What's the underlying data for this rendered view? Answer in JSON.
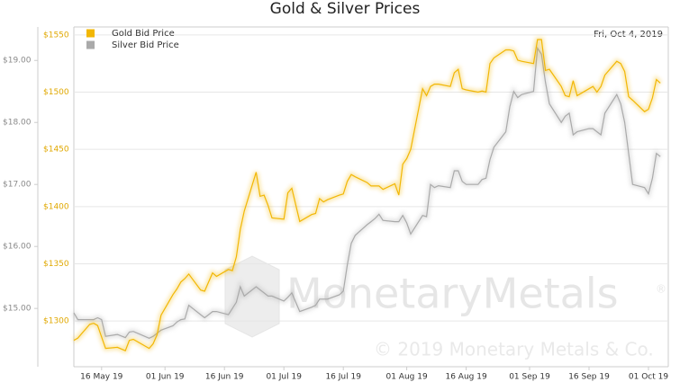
{
  "chart_data": {
    "type": "line",
    "title": "Gold & Silver Prices",
    "date_label": "Fri, Oct 4, 2019",
    "watermark": "MonetaryMetals",
    "watermark_mark": "®",
    "copyright": "© 2019 Monetary Metals & Co.",
    "x": [
      "2019-05-09",
      "2019-05-10",
      "2019-05-13",
      "2019-05-14",
      "2019-05-15",
      "2019-05-16",
      "2019-05-17",
      "2019-05-20",
      "2019-05-22",
      "2019-05-23",
      "2019-05-24",
      "2019-05-28",
      "2019-05-29",
      "2019-05-30",
      "2019-05-31",
      "2019-06-03",
      "2019-06-04",
      "2019-06-05",
      "2019-06-06",
      "2019-06-07",
      "2019-06-10",
      "2019-06-11",
      "2019-06-12",
      "2019-06-13",
      "2019-06-14",
      "2019-06-17",
      "2019-06-18",
      "2019-06-19",
      "2019-06-20",
      "2019-06-21",
      "2019-06-24",
      "2019-06-25",
      "2019-06-26",
      "2019-06-27",
      "2019-06-28",
      "2019-07-01",
      "2019-07-02",
      "2019-07-03",
      "2019-07-05",
      "2019-07-08",
      "2019-07-09",
      "2019-07-10",
      "2019-07-11",
      "2019-07-12",
      "2019-07-15",
      "2019-07-16",
      "2019-07-17",
      "2019-07-18",
      "2019-07-19",
      "2019-07-22",
      "2019-07-23",
      "2019-07-24",
      "2019-07-25",
      "2019-07-26",
      "2019-07-29",
      "2019-07-30",
      "2019-07-31",
      "2019-08-01",
      "2019-08-02",
      "2019-08-05",
      "2019-08-06",
      "2019-08-07",
      "2019-08-08",
      "2019-08-09",
      "2019-08-12",
      "2019-08-13",
      "2019-08-14",
      "2019-08-15",
      "2019-08-16",
      "2019-08-19",
      "2019-08-20",
      "2019-08-21",
      "2019-08-22",
      "2019-08-23",
      "2019-08-26",
      "2019-08-27",
      "2019-08-28",
      "2019-08-29",
      "2019-08-30",
      "2019-09-02",
      "2019-09-03",
      "2019-09-04",
      "2019-09-05",
      "2019-09-06",
      "2019-09-09",
      "2019-09-10",
      "2019-09-11",
      "2019-09-12",
      "2019-09-13",
      "2019-09-16",
      "2019-09-17",
      "2019-09-18",
      "2019-09-19",
      "2019-09-20",
      "2019-09-23",
      "2019-09-24",
      "2019-09-25",
      "2019-09-26",
      "2019-09-27",
      "2019-09-30",
      "2019-10-01",
      "2019-10-02",
      "2019-10-03",
      "2019-10-04"
    ],
    "xlim": [
      "2019-05-09",
      "2019-10-06"
    ],
    "xticks": [
      {
        "value": "2019-05-16",
        "label": "16 May 19"
      },
      {
        "value": "2019-06-01",
        "label": "01 Jun 19"
      },
      {
        "value": "2019-06-16",
        "label": "16 Jun 19"
      },
      {
        "value": "2019-07-01",
        "label": "01 Jul 19"
      },
      {
        "value": "2019-07-16",
        "label": "16 Jul 19"
      },
      {
        "value": "2019-08-01",
        "label": "01 Aug 19"
      },
      {
        "value": "2019-08-16",
        "label": "16 Aug 19"
      },
      {
        "value": "2019-09-01",
        "label": "01 Sep 19"
      },
      {
        "value": "2019-09-16",
        "label": "16 Sep 19"
      },
      {
        "value": "2019-10-01",
        "label": "01 Oct 19"
      }
    ],
    "ylim": [
      1260,
      1557
    ],
    "yticks": [
      {
        "value": 1300,
        "label": "$1300"
      },
      {
        "value": 1350,
        "label": "$1350"
      },
      {
        "value": 1400,
        "label": "$1400"
      },
      {
        "value": 1450,
        "label": "$1450"
      },
      {
        "value": 1500,
        "label": "$1500"
      },
      {
        "value": 1550,
        "label": "$1550"
      }
    ],
    "y2lim": [
      14.06,
      19.54
    ],
    "y2ticks": [
      {
        "value": 15,
        "label": "$15.00"
      },
      {
        "value": 16,
        "label": "$16.00"
      },
      {
        "value": 17,
        "label": "$17.00"
      },
      {
        "value": 18,
        "label": "$18.00"
      },
      {
        "value": 19,
        "label": "$19.00"
      }
    ],
    "grid": true,
    "legend": "upper left",
    "series": [
      {
        "name": "Gold Bid Price",
        "color": "#f2b705",
        "values": [
          1283,
          1285,
          1297,
          1298,
          1296,
          1286,
          1276,
          1277,
          1274,
          1283,
          1284,
          1276,
          1280,
          1288,
          1305,
          1323,
          1328,
          1334,
          1337,
          1341,
          1327,
          1326,
          1334,
          1342,
          1339,
          1345,
          1344,
          1356,
          1380,
          1396,
          1430,
          1409,
          1410,
          1401,
          1390,
          1389,
          1412,
          1416,
          1387,
          1393,
          1394,
          1407,
          1404,
          1406,
          1410,
          1411,
          1422,
          1428,
          1426,
          1421,
          1418,
          1418,
          1418,
          1415,
          1420,
          1410,
          1437,
          1442,
          1450,
          1503,
          1497,
          1505,
          1507,
          1507,
          1505,
          1517,
          1520,
          1503,
          1502,
          1500,
          1501,
          1500,
          1525,
          1530,
          1537,
          1537,
          1536,
          1528,
          1527,
          1525,
          1546,
          1546,
          1519,
          1520,
          1505,
          1497,
          1496,
          1510,
          1497,
          1503,
          1505,
          1500,
          1505,
          1515,
          1527,
          1525,
          1518,
          1496,
          1493,
          1483,
          1485,
          1495,
          1511,
          1508
        ]
      },
      {
        "name": "Silver Bid Price",
        "color": "#aaaaaa",
        "axis": "y2",
        "values": [
          14.93,
          14.82,
          14.82,
          14.82,
          14.85,
          14.82,
          14.55,
          14.58,
          14.53,
          14.62,
          14.63,
          14.52,
          14.55,
          14.6,
          14.65,
          14.72,
          14.78,
          14.82,
          14.83,
          15.05,
          14.9,
          14.85,
          14.9,
          14.95,
          14.95,
          14.9,
          15.0,
          15.1,
          15.35,
          15.2,
          15.35,
          15.3,
          15.25,
          15.2,
          15.2,
          15.12,
          15.18,
          15.25,
          14.95,
          15.02,
          15.05,
          15.15,
          15.15,
          15.15,
          15.22,
          15.28,
          15.7,
          16.05,
          16.18,
          16.35,
          16.4,
          16.45,
          16.52,
          16.42,
          16.4,
          16.4,
          16.5,
          16.38,
          16.2,
          16.5,
          16.48,
          17.0,
          16.95,
          16.98,
          16.95,
          17.22,
          17.22,
          17.05,
          17.0,
          17.0,
          17.08,
          17.1,
          17.4,
          17.6,
          17.85,
          18.25,
          18.5,
          18.4,
          18.45,
          18.5,
          19.2,
          19.1,
          18.65,
          18.3,
          18.0,
          18.1,
          18.15,
          17.8,
          17.85,
          17.9,
          17.9,
          17.85,
          17.8,
          18.15,
          18.45,
          18.3,
          18.0,
          17.5,
          17.0,
          16.95,
          16.85,
          17.1,
          17.5,
          17.45
        ]
      }
    ]
  }
}
